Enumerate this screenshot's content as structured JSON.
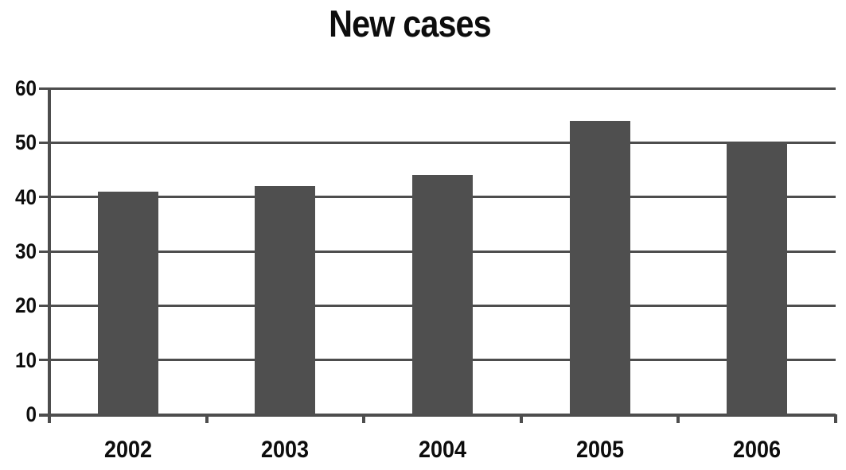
{
  "title": "New cases",
  "chart_data": {
    "type": "bar",
    "title": "New cases",
    "categories": [
      "2002",
      "2003",
      "2004",
      "2005",
      "2006"
    ],
    "values": [
      41,
      42,
      44,
      54,
      50
    ],
    "xlabel": "",
    "ylabel": "",
    "ylim": [
      0,
      60
    ],
    "ytick_step": 10,
    "ytick_labels": [
      "0",
      "10",
      "20",
      "30",
      "40",
      "50",
      "60"
    ],
    "grid": "horizontal",
    "legend": "none",
    "bar_color": "#4f4f4f",
    "axis_color": "#4d4d4d",
    "text_color": "#0d0d0d",
    "background": "#ffffff"
  }
}
